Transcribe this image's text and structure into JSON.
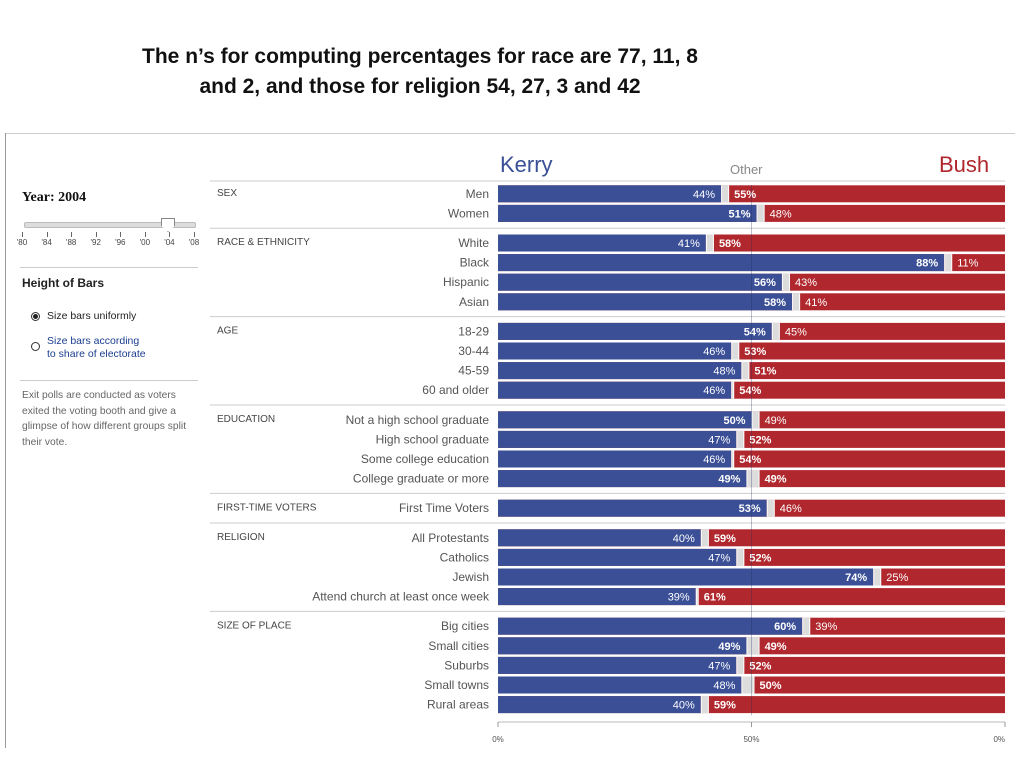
{
  "title_line1": "The n’s for computing percentages for race are 77, 11, 8",
  "title_line2": "and 2, and those for religion 54, 27, 3 and 42",
  "sidebar": {
    "year_label": "Year: 2004",
    "slider_ticks": [
      "'80",
      "'84",
      "'88",
      "'92",
      "'96",
      "'00",
      "'04",
      "'08"
    ],
    "slider_value": "'04",
    "height_heading": "Height of Bars",
    "option_uniform": "Size bars uniformly",
    "option_share_line1": "Size bars according",
    "option_share_line2": "to share of electorate",
    "note": "Exit polls are conducted as voters exited the voting booth and give a glimpse of how different groups split their vote."
  },
  "colors": {
    "kerry": "#3a4f96",
    "bush": "#b0272d",
    "other": "#dcdcdc"
  },
  "chart_data": {
    "type": "bar",
    "orientation": "horizontal-stacked",
    "legend": {
      "left": "Kerry",
      "center": "Other",
      "right": "Bush"
    },
    "xlim": [
      0,
      100
    ],
    "x_ticks": [
      "0%",
      "50%",
      "0%"
    ],
    "groups": [
      {
        "name": "SEX",
        "rows": [
          {
            "label": "Men",
            "kerry": 44,
            "bush": 55
          },
          {
            "label": "Women",
            "kerry": 51,
            "bush": 48
          }
        ]
      },
      {
        "name": "RACE & ETHNICITY",
        "rows": [
          {
            "label": "White",
            "kerry": 41,
            "bush": 58
          },
          {
            "label": "Black",
            "kerry": 88,
            "bush": 11
          },
          {
            "label": "Hispanic",
            "kerry": 56,
            "bush": 43
          },
          {
            "label": "Asian",
            "kerry": 58,
            "bush": 41
          }
        ]
      },
      {
        "name": "AGE",
        "rows": [
          {
            "label": "18-29",
            "kerry": 54,
            "bush": 45
          },
          {
            "label": "30-44",
            "kerry": 46,
            "bush": 53
          },
          {
            "label": "45-59",
            "kerry": 48,
            "bush": 51
          },
          {
            "label": "60 and older",
            "kerry": 46,
            "bush": 54
          }
        ]
      },
      {
        "name": "EDUCATION",
        "rows": [
          {
            "label": "Not a high school graduate",
            "kerry": 50,
            "bush": 49
          },
          {
            "label": "High school graduate",
            "kerry": 47,
            "bush": 52
          },
          {
            "label": "Some college education",
            "kerry": 46,
            "bush": 54
          },
          {
            "label": "College graduate or more",
            "kerry": 49,
            "bush": 49
          }
        ]
      },
      {
        "name": "FIRST-TIME VOTERS",
        "rows": [
          {
            "label": "First Time Voters",
            "kerry": 53,
            "bush": 46
          }
        ]
      },
      {
        "name": "RELIGION",
        "rows": [
          {
            "label": "All Protestants",
            "kerry": 40,
            "bush": 59
          },
          {
            "label": "Catholics",
            "kerry": 47,
            "bush": 52
          },
          {
            "label": "Jewish",
            "kerry": 74,
            "bush": 25
          },
          {
            "label": "Attend church at least once week",
            "kerry": 39,
            "bush": 61
          }
        ]
      },
      {
        "name": "SIZE OF PLACE",
        "rows": [
          {
            "label": "Big cities",
            "kerry": 60,
            "bush": 39
          },
          {
            "label": "Small cities",
            "kerry": 49,
            "bush": 49
          },
          {
            "label": "Suburbs",
            "kerry": 47,
            "bush": 52
          },
          {
            "label": "Small towns",
            "kerry": 48,
            "bush": 50
          },
          {
            "label": "Rural areas",
            "kerry": 40,
            "bush": 59
          }
        ]
      }
    ]
  }
}
